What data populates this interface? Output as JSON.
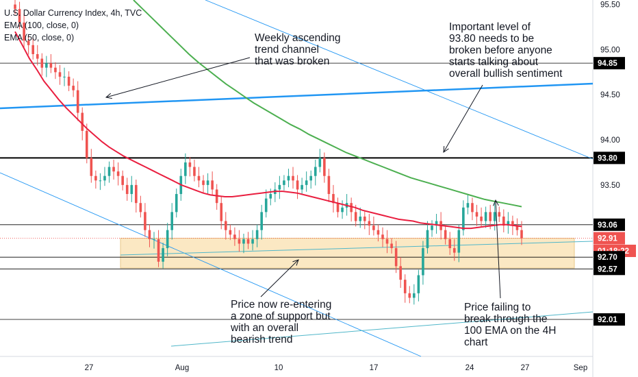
{
  "legend": {
    "title": "U.S. Dollar Currency Index, 4h, TVC",
    "ema100": "EMA (100, close, 0)",
    "ema50": "EMA (50, close, 0)"
  },
  "annotations": {
    "channel": "Weekly ascending\ntrend channel\nthat was broken",
    "level": "Important level of\n93.80 needs to be\nbroken before anyone\nstarts talking about\noverall bullish sentiment",
    "support": "Price now re-entering\na zone of support but\nwith an overall\nbearish trend",
    "ema": "Price failing to\nbreak through the\n100 EMA on the 4H\nchart"
  },
  "colors": {
    "up": "#26a69a",
    "down": "#ef5350",
    "ema50": "#e91e3f",
    "ema100": "#4caf50",
    "trend_blue": "#2196f3",
    "support_zone": "#fbe8c3",
    "teal_line": "#4fb6c9",
    "black": "#000000",
    "price_tag": "#ef5350"
  },
  "chart_data": {
    "type": "candlestick",
    "title": "U.S. Dollar Currency Index, 4h, TVC",
    "xlabel": "",
    "ylabel": "",
    "ylim": [
      91.6,
      95.55
    ],
    "x_ticks": [
      "27",
      "Aug",
      "10",
      "17",
      "24",
      "27",
      "Sep"
    ],
    "y_ticks": [
      95.5,
      95.0,
      94.5,
      94.0,
      93.5
    ],
    "price_labels": [
      {
        "text": "94.85",
        "value": 94.85
      },
      {
        "text": "93.80",
        "value": 93.8
      },
      {
        "text": "93.06",
        "value": 93.06
      },
      {
        "text": "92.91",
        "value": 92.91
      },
      {
        "text": "01:18:22",
        "value": 92.77
      },
      {
        "text": "92.70",
        "value": 92.7
      },
      {
        "text": "92.57",
        "value": 92.57
      },
      {
        "text": "92.01",
        "value": 92.01
      }
    ],
    "horizontal_levels": [
      94.85,
      93.8,
      93.06,
      92.7,
      92.57,
      92.01
    ],
    "support_zone": [
      92.58,
      92.91
    ],
    "close_series": [
      95.45,
      95.3,
      95.1,
      95.05,
      94.95,
      94.9,
      94.8,
      94.85,
      94.8,
      94.75,
      94.7,
      94.7,
      94.6,
      94.55,
      94.3,
      94.1,
      93.8,
      93.6,
      93.55,
      93.55,
      93.6,
      93.7,
      93.65,
      93.6,
      93.5,
      93.4,
      93.5,
      93.3,
      93.2,
      93.0,
      92.9,
      92.9,
      92.65,
      92.8,
      93.0,
      93.2,
      93.4,
      93.6,
      93.75,
      93.7,
      93.6,
      93.55,
      93.5,
      93.55,
      93.45,
      93.3,
      93.1,
      93.0,
      92.95,
      92.9,
      92.85,
      92.9,
      92.85,
      92.9,
      93.0,
      93.2,
      93.35,
      93.4,
      93.45,
      93.5,
      93.55,
      93.6,
      93.55,
      93.45,
      93.5,
      93.55,
      93.6,
      93.7,
      93.8,
      93.6,
      93.4,
      93.3,
      93.2,
      93.25,
      93.3,
      93.2,
      93.1,
      93.15,
      93.1,
      93.05,
      93.0,
      92.95,
      92.9,
      92.85,
      92.8,
      92.6,
      92.45,
      92.3,
      92.25,
      92.3,
      92.5,
      92.8,
      93.0,
      93.05,
      93.1,
      93.0,
      92.9,
      92.8,
      92.75,
      93.0,
      93.25,
      93.3,
      93.2,
      93.15,
      93.1,
      93.2,
      93.1,
      93.2,
      93.15,
      93.05,
      93.1,
      93.05,
      93.0,
      92.91
    ],
    "ema50_series": [
      95.2,
      95.05,
      94.9,
      94.78,
      94.65,
      94.55,
      94.45,
      94.36,
      94.28,
      94.2,
      94.12,
      94.05,
      93.98,
      93.92,
      93.87,
      93.82,
      93.78,
      93.74,
      93.7,
      93.66,
      93.62,
      93.58,
      93.54,
      93.5,
      93.47,
      93.44,
      93.41,
      93.39,
      93.38,
      93.37,
      93.37,
      93.38,
      93.39,
      93.4,
      93.41,
      93.42,
      93.43,
      93.43,
      93.42,
      93.41,
      93.39,
      93.37,
      93.35,
      93.33,
      93.31,
      93.29,
      93.27,
      93.25,
      93.22,
      93.2,
      93.18,
      93.16,
      93.14,
      93.12,
      93.11,
      93.1,
      93.08,
      93.07,
      93.06,
      93.05,
      93.04,
      93.03,
      93.02,
      93.02,
      93.03,
      93.04,
      93.05,
      93.06,
      93.06,
      93.05,
      93.04
    ],
    "ema100_series": [
      95.55,
      95.45,
      95.35,
      95.25,
      95.15,
      95.05,
      94.95,
      94.86,
      94.78,
      94.7,
      94.62,
      94.55,
      94.48,
      94.41,
      94.35,
      94.29,
      94.23,
      94.17,
      94.12,
      94.06,
      94.01,
      93.96,
      93.91,
      93.86,
      93.82,
      93.78,
      93.74,
      93.7,
      93.66,
      93.62,
      93.58,
      93.55,
      93.52,
      93.49,
      93.46,
      93.43,
      93.4,
      93.37,
      93.34,
      93.32,
      93.3,
      93.28,
      93.26
    ]
  }
}
